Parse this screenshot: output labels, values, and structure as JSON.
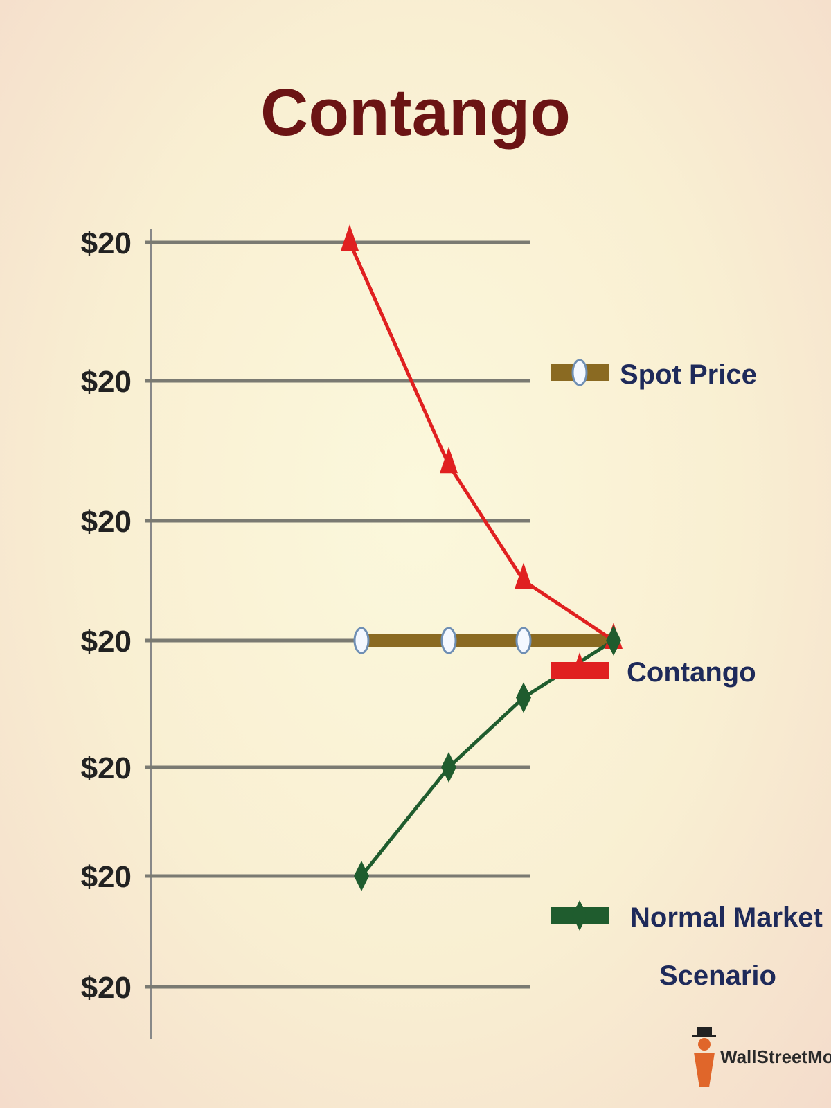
{
  "chart_data": {
    "type": "line",
    "title": "Contango",
    "xlabel": "",
    "ylabel": "",
    "y_tick_labels": [
      "$20",
      "$20",
      "$20",
      "$20",
      "$20",
      "$20",
      "$20"
    ],
    "y_levels": [
      7,
      6,
      5,
      4,
      3,
      2,
      1
    ],
    "ylim": [
      1,
      7
    ],
    "grid": true,
    "legend_position": "right",
    "series": [
      {
        "name": "Spot Price",
        "color": "#8a6a22",
        "marker": "circle",
        "points": [
          [
            1,
            4
          ],
          [
            2,
            4
          ],
          [
            3,
            4
          ],
          [
            4,
            4
          ]
        ]
      },
      {
        "name": "Contango",
        "color": "#e02020",
        "marker": "triangle",
        "points": [
          [
            0.85,
            7
          ],
          [
            2,
            5.4
          ],
          [
            3,
            4.5
          ],
          [
            4,
            4
          ]
        ]
      },
      {
        "name": "Normal Market Scenario",
        "color": "#1f5c2e",
        "marker": "diamond",
        "points": [
          [
            1,
            2
          ],
          [
            2,
            3
          ],
          [
            3,
            3.55
          ],
          [
            4,
            4
          ]
        ]
      }
    ],
    "legend": [
      {
        "label": "Spot Price",
        "icon": "circle-icon"
      },
      {
        "label": "Contango",
        "icon": "triangle-icon"
      },
      {
        "label_lines": [
          "Normal Market",
          "Scenario"
        ],
        "icon": "diamond-icon"
      }
    ]
  },
  "logo": {
    "text": "WallStreetMojo",
    "icon": "wallstreetmojo-logo-icon"
  }
}
